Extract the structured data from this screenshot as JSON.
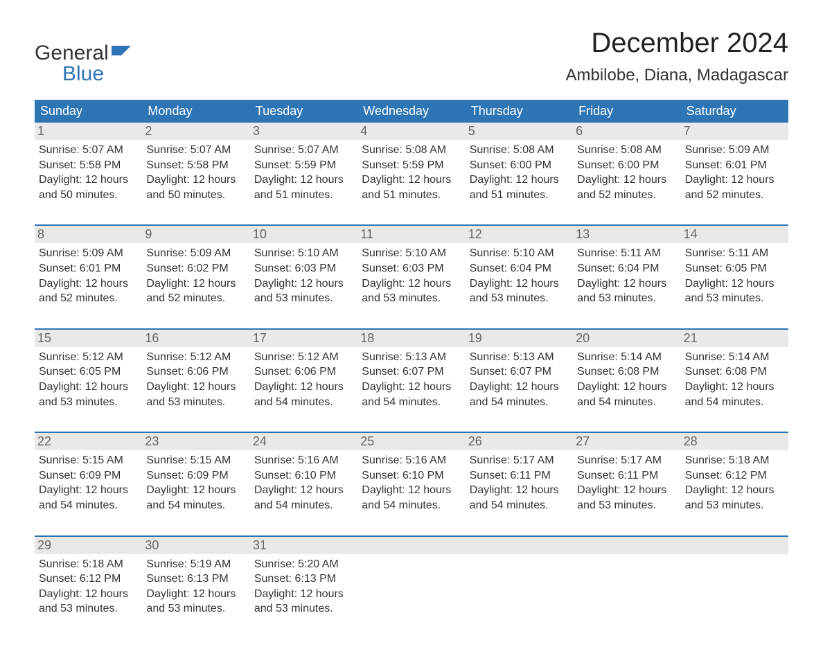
{
  "logo": {
    "part1": "General",
    "part2": "Blue"
  },
  "title": "December 2024",
  "location": "Ambilobe, Diana, Madagascar",
  "colors": {
    "header_bg": "#2e75b6",
    "header_text": "#ffffff",
    "daynum_bg": "#e9e9e9",
    "daynum_text": "#666666",
    "body_text": "#333333",
    "page_bg": "#ffffff",
    "week_border": "#2e75b6"
  },
  "typography": {
    "title_fontsize": 40,
    "location_fontsize": 24,
    "header_fontsize": 18,
    "daynum_fontsize": 18,
    "body_fontsize": 16
  },
  "layout": {
    "columns": 7
  },
  "day_headers": [
    "Sunday",
    "Monday",
    "Tuesday",
    "Wednesday",
    "Thursday",
    "Friday",
    "Saturday"
  ],
  "weeks": [
    {
      "days": [
        {
          "num": "1",
          "sunrise": "Sunrise: 5:07 AM",
          "sunset": "Sunset: 5:58 PM",
          "daylight1": "Daylight: 12 hours",
          "daylight2": "and 50 minutes."
        },
        {
          "num": "2",
          "sunrise": "Sunrise: 5:07 AM",
          "sunset": "Sunset: 5:58 PM",
          "daylight1": "Daylight: 12 hours",
          "daylight2": "and 50 minutes."
        },
        {
          "num": "3",
          "sunrise": "Sunrise: 5:07 AM",
          "sunset": "Sunset: 5:59 PM",
          "daylight1": "Daylight: 12 hours",
          "daylight2": "and 51 minutes."
        },
        {
          "num": "4",
          "sunrise": "Sunrise: 5:08 AM",
          "sunset": "Sunset: 5:59 PM",
          "daylight1": "Daylight: 12 hours",
          "daylight2": "and 51 minutes."
        },
        {
          "num": "5",
          "sunrise": "Sunrise: 5:08 AM",
          "sunset": "Sunset: 6:00 PM",
          "daylight1": "Daylight: 12 hours",
          "daylight2": "and 51 minutes."
        },
        {
          "num": "6",
          "sunrise": "Sunrise: 5:08 AM",
          "sunset": "Sunset: 6:00 PM",
          "daylight1": "Daylight: 12 hours",
          "daylight2": "and 52 minutes."
        },
        {
          "num": "7",
          "sunrise": "Sunrise: 5:09 AM",
          "sunset": "Sunset: 6:01 PM",
          "daylight1": "Daylight: 12 hours",
          "daylight2": "and 52 minutes."
        }
      ]
    },
    {
      "days": [
        {
          "num": "8",
          "sunrise": "Sunrise: 5:09 AM",
          "sunset": "Sunset: 6:01 PM",
          "daylight1": "Daylight: 12 hours",
          "daylight2": "and 52 minutes."
        },
        {
          "num": "9",
          "sunrise": "Sunrise: 5:09 AM",
          "sunset": "Sunset: 6:02 PM",
          "daylight1": "Daylight: 12 hours",
          "daylight2": "and 52 minutes."
        },
        {
          "num": "10",
          "sunrise": "Sunrise: 5:10 AM",
          "sunset": "Sunset: 6:03 PM",
          "daylight1": "Daylight: 12 hours",
          "daylight2": "and 53 minutes."
        },
        {
          "num": "11",
          "sunrise": "Sunrise: 5:10 AM",
          "sunset": "Sunset: 6:03 PM",
          "daylight1": "Daylight: 12 hours",
          "daylight2": "and 53 minutes."
        },
        {
          "num": "12",
          "sunrise": "Sunrise: 5:10 AM",
          "sunset": "Sunset: 6:04 PM",
          "daylight1": "Daylight: 12 hours",
          "daylight2": "and 53 minutes."
        },
        {
          "num": "13",
          "sunrise": "Sunrise: 5:11 AM",
          "sunset": "Sunset: 6:04 PM",
          "daylight1": "Daylight: 12 hours",
          "daylight2": "and 53 minutes."
        },
        {
          "num": "14",
          "sunrise": "Sunrise: 5:11 AM",
          "sunset": "Sunset: 6:05 PM",
          "daylight1": "Daylight: 12 hours",
          "daylight2": "and 53 minutes."
        }
      ]
    },
    {
      "days": [
        {
          "num": "15",
          "sunrise": "Sunrise: 5:12 AM",
          "sunset": "Sunset: 6:05 PM",
          "daylight1": "Daylight: 12 hours",
          "daylight2": "and 53 minutes."
        },
        {
          "num": "16",
          "sunrise": "Sunrise: 5:12 AM",
          "sunset": "Sunset: 6:06 PM",
          "daylight1": "Daylight: 12 hours",
          "daylight2": "and 53 minutes."
        },
        {
          "num": "17",
          "sunrise": "Sunrise: 5:12 AM",
          "sunset": "Sunset: 6:06 PM",
          "daylight1": "Daylight: 12 hours",
          "daylight2": "and 54 minutes."
        },
        {
          "num": "18",
          "sunrise": "Sunrise: 5:13 AM",
          "sunset": "Sunset: 6:07 PM",
          "daylight1": "Daylight: 12 hours",
          "daylight2": "and 54 minutes."
        },
        {
          "num": "19",
          "sunrise": "Sunrise: 5:13 AM",
          "sunset": "Sunset: 6:07 PM",
          "daylight1": "Daylight: 12 hours",
          "daylight2": "and 54 minutes."
        },
        {
          "num": "20",
          "sunrise": "Sunrise: 5:14 AM",
          "sunset": "Sunset: 6:08 PM",
          "daylight1": "Daylight: 12 hours",
          "daylight2": "and 54 minutes."
        },
        {
          "num": "21",
          "sunrise": "Sunrise: 5:14 AM",
          "sunset": "Sunset: 6:08 PM",
          "daylight1": "Daylight: 12 hours",
          "daylight2": "and 54 minutes."
        }
      ]
    },
    {
      "days": [
        {
          "num": "22",
          "sunrise": "Sunrise: 5:15 AM",
          "sunset": "Sunset: 6:09 PM",
          "daylight1": "Daylight: 12 hours",
          "daylight2": "and 54 minutes."
        },
        {
          "num": "23",
          "sunrise": "Sunrise: 5:15 AM",
          "sunset": "Sunset: 6:09 PM",
          "daylight1": "Daylight: 12 hours",
          "daylight2": "and 54 minutes."
        },
        {
          "num": "24",
          "sunrise": "Sunrise: 5:16 AM",
          "sunset": "Sunset: 6:10 PM",
          "daylight1": "Daylight: 12 hours",
          "daylight2": "and 54 minutes."
        },
        {
          "num": "25",
          "sunrise": "Sunrise: 5:16 AM",
          "sunset": "Sunset: 6:10 PM",
          "daylight1": "Daylight: 12 hours",
          "daylight2": "and 54 minutes."
        },
        {
          "num": "26",
          "sunrise": "Sunrise: 5:17 AM",
          "sunset": "Sunset: 6:11 PM",
          "daylight1": "Daylight: 12 hours",
          "daylight2": "and 54 minutes."
        },
        {
          "num": "27",
          "sunrise": "Sunrise: 5:17 AM",
          "sunset": "Sunset: 6:11 PM",
          "daylight1": "Daylight: 12 hours",
          "daylight2": "and 53 minutes."
        },
        {
          "num": "28",
          "sunrise": "Sunrise: 5:18 AM",
          "sunset": "Sunset: 6:12 PM",
          "daylight1": "Daylight: 12 hours",
          "daylight2": "and 53 minutes."
        }
      ]
    },
    {
      "days": [
        {
          "num": "29",
          "sunrise": "Sunrise: 5:18 AM",
          "sunset": "Sunset: 6:12 PM",
          "daylight1": "Daylight: 12 hours",
          "daylight2": "and 53 minutes."
        },
        {
          "num": "30",
          "sunrise": "Sunrise: 5:19 AM",
          "sunset": "Sunset: 6:13 PM",
          "daylight1": "Daylight: 12 hours",
          "daylight2": "and 53 minutes."
        },
        {
          "num": "31",
          "sunrise": "Sunrise: 5:20 AM",
          "sunset": "Sunset: 6:13 PM",
          "daylight1": "Daylight: 12 hours",
          "daylight2": "and 53 minutes."
        },
        null,
        null,
        null,
        null
      ]
    }
  ]
}
